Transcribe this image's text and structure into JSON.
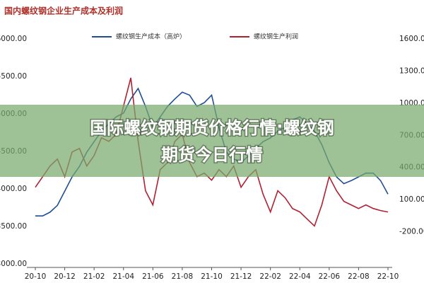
{
  "chart_data": {
    "type": "line",
    "title": "国内螺纹钢企业生产成本及利润",
    "categories": [
      "20-10",
      null,
      null,
      null,
      "20-12",
      null,
      null,
      null,
      "21-02",
      null,
      null,
      null,
      "21-04",
      null,
      null,
      null,
      "21-06",
      null,
      null,
      null,
      "21-08",
      null,
      null,
      null,
      "21-10",
      null,
      null,
      null,
      "21-12",
      null,
      null,
      null,
      "22-02",
      null,
      null,
      null,
      "22-04",
      null,
      null,
      null,
      "22-06",
      null,
      null,
      null,
      "22-08",
      null,
      null,
      null,
      "22-10"
    ],
    "series": [
      {
        "name": "螺纹钢生产成本（高炉）",
        "color": "#1f4e96",
        "axis": "y",
        "values": [
          3640,
          3640,
          3690,
          3780,
          3970,
          4160,
          4300,
          4490,
          4630,
          4770,
          4870,
          4960,
          5010,
          5200,
          5340,
          5100,
          4820,
          4960,
          5100,
          5200,
          5290,
          5250,
          5100,
          5150,
          5250,
          4820,
          4490,
          4400,
          4350,
          4440,
          4540,
          4630,
          4680,
          4770,
          4820,
          4920,
          4960,
          4870,
          4770,
          4590,
          4350,
          4160,
          4070,
          4110,
          4160,
          4210,
          4210,
          4110,
          3930
        ]
      },
      {
        "name": "螺纹钢生产利润",
        "color": "#b22031",
        "axis": "y2",
        "values": [
          215,
          314,
          413,
          479,
          314,
          545,
          578,
          413,
          512,
          677,
          644,
          710,
          974,
          1237,
          644,
          183,
          51,
          380,
          446,
          644,
          710,
          446,
          314,
          347,
          281,
          380,
          314,
          413,
          215,
          314,
          380,
          150,
          -15,
          183,
          117,
          17,
          -15,
          -81,
          -147,
          51,
          314,
          183,
          84,
          51,
          17,
          51,
          17,
          -2,
          -15
        ]
      }
    ],
    "ylim": [
      3000,
      6000
    ],
    "yticks": [
      {
        "value": 6000,
        "label": "6000.00"
      },
      {
        "value": 5500,
        "label": "5500.00"
      },
      {
        "value": 5000,
        "label": "5000.00"
      },
      {
        "value": 4500,
        "label": "4500.00"
      },
      {
        "value": 4000,
        "label": "4000.00"
      },
      {
        "value": 3500,
        "label": "3500.00"
      },
      {
        "value": 3000,
        "label": "3000.00"
      }
    ],
    "y2lim": [
      -500,
      1600
    ],
    "y2ticks": [
      {
        "value": 1600,
        "label": "1600.00"
      },
      {
        "value": 1300,
        "label": "1300.00"
      },
      {
        "value": 1000,
        "label": "1000.00"
      },
      {
        "value": 700,
        "label": "700.00"
      },
      {
        "value": 400,
        "label": "400.00"
      },
      {
        "value": 100,
        "label": "100.00"
      },
      {
        "value": -200,
        "label": "-200.00"
      }
    ],
    "grid": false
  },
  "overlay": {
    "lines": [
      "国际螺纹钢期货价格行情:螺纹钢",
      "期货今日行情"
    ]
  }
}
